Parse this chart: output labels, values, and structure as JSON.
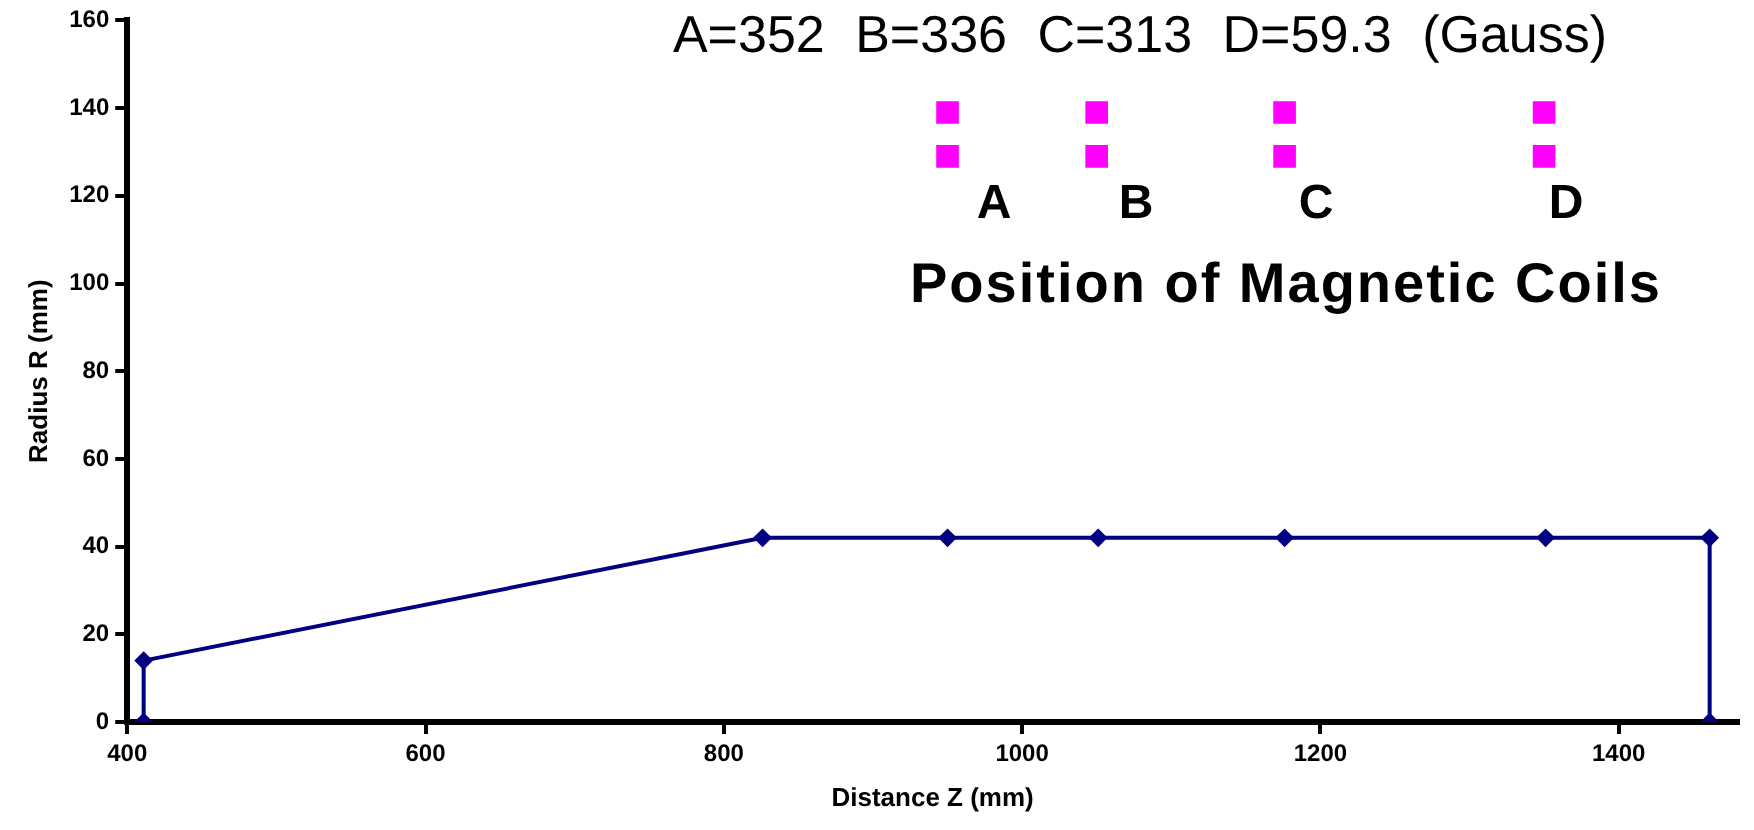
{
  "chart_data": {
    "type": "line",
    "xlabel": "Distance Z (mm)",
    "ylabel": "Radius R (mm)",
    "xlim": [
      400,
      1480
    ],
    "xticks": [
      400,
      600,
      800,
      1000,
      1200,
      1400
    ],
    "ylim": [
      0,
      160
    ],
    "yticks": [
      0,
      20,
      40,
      60,
      80,
      100,
      120,
      140,
      160
    ],
    "grid": false,
    "legend": false,
    "marker": "diamond",
    "line_style": "solid",
    "series": [
      {
        "color": "#000080",
        "x": [
          411,
          411,
          826,
          950,
          1051,
          1176,
          1351,
          1461,
          1461
        ],
        "values": [
          0,
          14,
          42,
          42,
          42,
          42,
          42,
          42,
          0
        ]
      },
      {
        "type": "scatter",
        "marker": "square",
        "color": "#ff00ff",
        "x": [
          950,
          950,
          1050,
          1050,
          1176,
          1176,
          1350,
          1350
        ],
        "values": [
          139,
          129,
          139,
          129,
          139,
          129,
          139,
          129
        ]
      }
    ],
    "annotations": [
      "A=352   B=336   C=313   D=59.3   (Gauss)",
      "A",
      "B",
      "C",
      "D",
      "Position of Magnetic Coils"
    ]
  }
}
